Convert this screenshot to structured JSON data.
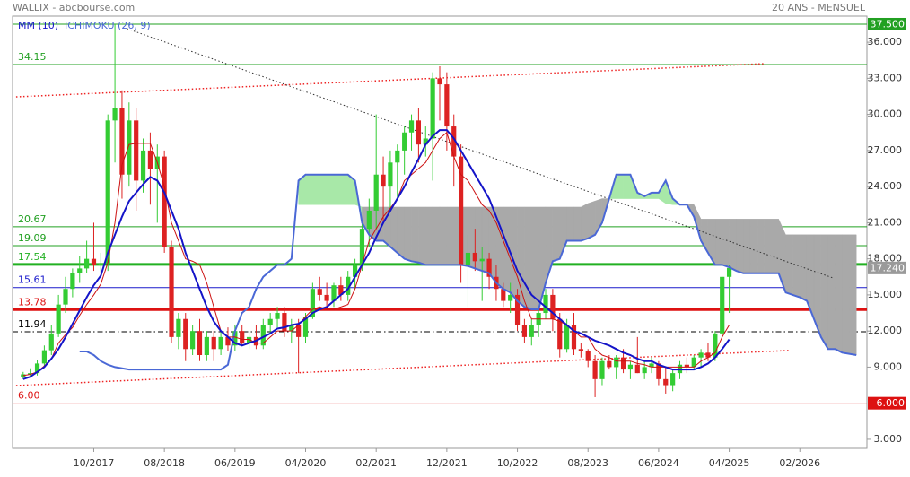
{
  "chart_data": {
    "type": "candlestick",
    "title": "WALLIX - abcbourse.com",
    "period": "20 ANS - MENSUEL",
    "categories": [
      null,
      null,
      null,
      null,
      null,
      null,
      null,
      null,
      null,
      null,
      null,
      "10/2017",
      null,
      null,
      null,
      null,
      null,
      null,
      null,
      null,
      null,
      "08/2018",
      null,
      null,
      null,
      null,
      null,
      null,
      null,
      null,
      null,
      "06/2019",
      null,
      null,
      null,
      null,
      null,
      null,
      null,
      null,
      null,
      "04/2020",
      null,
      null,
      null,
      null,
      null,
      null,
      null,
      null,
      null,
      "02/2021",
      null,
      null,
      null,
      null,
      null,
      null,
      null,
      null,
      null,
      "12/2021",
      null,
      null,
      null,
      null,
      null,
      null,
      null,
      null,
      null,
      "10/2022",
      null,
      null,
      null,
      null,
      null,
      null,
      null,
      null,
      null,
      "08/2023",
      null,
      null,
      null,
      null,
      null,
      null,
      null,
      null,
      null,
      "06/2024",
      null,
      null,
      null,
      null,
      null,
      null,
      null,
      null,
      null,
      "04/2025",
      null,
      null,
      null,
      null,
      null,
      null,
      null,
      null,
      null,
      "02/2026",
      null,
      null,
      null,
      null,
      null,
      null,
      null,
      null,
      null
    ],
    "ylim": [
      2.25,
      38.17
    ],
    "yticks": [
      {
        "value": 36,
        "label": "36.000"
      },
      {
        "value": 33,
        "label": "33.000"
      },
      {
        "value": 30,
        "label": "30.000"
      },
      {
        "value": 27,
        "label": "27.000"
      },
      {
        "value": 24,
        "label": "24.000"
      },
      {
        "value": 21,
        "label": "21.000"
      },
      {
        "value": 18,
        "label": "18.000"
      },
      {
        "value": 15,
        "label": "15.000"
      },
      {
        "value": 12,
        "label": "12.000"
      },
      {
        "value": 9,
        "label": "9.000"
      },
      {
        "value": 3,
        "label": "3.000"
      }
    ],
    "up_color": "#33cc33",
    "down_color": "#dd2222",
    "candles": {
      "open": [
        null,
        8.2,
        8.4,
        8.5,
        9.3,
        10.4,
        11.8,
        14.2,
        15.5,
        16.8,
        17.2,
        18.0,
        17.5,
        17.6,
        29.5,
        30.5,
        25.0,
        29.5,
        24.5,
        27.0,
        25.5,
        26.5,
        19.0,
        11.5,
        13.0,
        10.5,
        12.0,
        10.0,
        11.5,
        10.5,
        11.5,
        10.8,
        12.0,
        11.0,
        11.5,
        10.8,
        12.5,
        13.0,
        13.5,
        12.0,
        12.5,
        11.5,
        13.2,
        15.5,
        15.0,
        14.5,
        15.8,
        15.0,
        16.5,
        17.5,
        20.5,
        22.0,
        25.0,
        24.0,
        26.0,
        27.0,
        28.5,
        29.5,
        27.5,
        28.0,
        33.0,
        32.5,
        29.0,
        26.5,
        17.5,
        18.5,
        17.8,
        18.0,
        16.5,
        15.5,
        14.5,
        15.0,
        12.5,
        11.5,
        12.5,
        13.5,
        15.0,
        13.0,
        10.5,
        12.5,
        10.5,
        10.3,
        9.5,
        8.0,
        9.5,
        9.0,
        9.8,
        8.8,
        9.2,
        8.5,
        9.0,
        9.3,
        8.0,
        7.5,
        8.5,
        9.2,
        9.0,
        9.8,
        10.2,
        9.8,
        11.8,
        16.5,
        null,
        null,
        null,
        null,
        null,
        null,
        null,
        null,
        null,
        null,
        null,
        null,
        null,
        null,
        null,
        null,
        null,
        null,
        null
      ],
      "high": [
        null,
        8.6,
        8.9,
        9.6,
        10.8,
        12.5,
        15.0,
        16.5,
        17.2,
        18.2,
        19.5,
        21.0,
        18.5,
        30.0,
        37.5,
        32.0,
        31.0,
        30.5,
        28.0,
        28.5,
        27.5,
        27.0,
        19.5,
        13.5,
        13.5,
        12.5,
        13.0,
        12.0,
        12.0,
        12.0,
        12.3,
        12.5,
        12.5,
        12.0,
        12.5,
        13.0,
        13.5,
        14.0,
        14.0,
        13.0,
        13.0,
        13.5,
        16.0,
        16.5,
        16.0,
        16.0,
        16.5,
        17.0,
        18.0,
        21.0,
        23.0,
        30.0,
        26.5,
        27.0,
        27.5,
        29.0,
        30.0,
        30.5,
        29.0,
        33.5,
        34.0,
        33.5,
        30.0,
        27.5,
        20.0,
        20.5,
        19.0,
        18.5,
        17.5,
        16.0,
        16.0,
        15.5,
        13.0,
        13.0,
        14.0,
        15.5,
        15.5,
        13.5,
        13.0,
        13.5,
        11.0,
        10.5,
        10.0,
        9.8,
        10.0,
        10.0,
        10.5,
        9.5,
        11.5,
        9.5,
        9.8,
        9.5,
        9.0,
        8.8,
        9.5,
        9.8,
        10.0,
        10.5,
        11.0,
        12.0,
        16.5,
        17.5,
        null,
        null,
        null,
        null,
        null,
        null,
        null,
        null,
        null,
        null,
        null,
        null,
        null,
        null,
        null,
        null,
        null,
        null,
        null
      ],
      "low": [
        null,
        8.0,
        8.2,
        8.3,
        9.0,
        10.0,
        11.5,
        13.5,
        14.8,
        16.0,
        16.8,
        17.0,
        16.8,
        17.0,
        26.0,
        23.0,
        24.0,
        22.0,
        23.5,
        22.5,
        21.0,
        18.5,
        11.0,
        10.5,
        9.5,
        10.0,
        9.5,
        9.5,
        9.5,
        10.0,
        10.3,
        10.3,
        10.8,
        10.5,
        10.5,
        10.5,
        11.8,
        12.3,
        11.5,
        11.0,
        8.5,
        11.0,
        13.0,
        14.5,
        14.0,
        14.0,
        14.5,
        14.5,
        15.5,
        17.0,
        19.0,
        20.5,
        21.0,
        22.0,
        23.0,
        25.0,
        27.0,
        26.0,
        26.5,
        24.5,
        29.5,
        27.0,
        24.0,
        16.0,
        14.0,
        17.0,
        14.5,
        15.5,
        14.5,
        14.0,
        13.5,
        12.0,
        11.0,
        10.8,
        11.5,
        13.0,
        12.0,
        9.8,
        10.2,
        10.0,
        9.8,
        9.0,
        6.5,
        7.5,
        8.8,
        8.0,
        8.5,
        8.0,
        8.5,
        8.0,
        8.5,
        7.5,
        6.8,
        7.0,
        8.0,
        8.5,
        8.8,
        9.0,
        9.5,
        9.5,
        11.5,
        13.5,
        null,
        null,
        null,
        null,
        null,
        null,
        null,
        null,
        null,
        null,
        null,
        null,
        null,
        null,
        null,
        null,
        null,
        null,
        null
      ],
      "close": [
        null,
        8.4,
        8.5,
        9.3,
        10.4,
        11.8,
        14.2,
        15.5,
        16.8,
        17.2,
        18.0,
        17.5,
        17.6,
        29.5,
        30.5,
        25.0,
        29.5,
        24.5,
        27.0,
        25.5,
        26.5,
        19.0,
        11.5,
        13.0,
        10.5,
        12.0,
        10.0,
        11.5,
        10.5,
        11.5,
        10.8,
        12.0,
        11.0,
        11.5,
        10.8,
        12.5,
        13.0,
        13.5,
        12.0,
        12.5,
        11.5,
        13.2,
        15.5,
        15.0,
        14.5,
        15.8,
        15.0,
        16.5,
        17.5,
        20.5,
        22.0,
        25.0,
        24.0,
        26.0,
        27.0,
        28.5,
        29.5,
        27.5,
        28.0,
        33.0,
        32.5,
        29.0,
        26.5,
        17.5,
        18.5,
        17.8,
        18.0,
        16.5,
        15.5,
        14.5,
        15.0,
        12.5,
        11.5,
        12.5,
        13.5,
        15.0,
        13.0,
        10.5,
        12.5,
        10.5,
        10.3,
        9.5,
        8.0,
        9.5,
        9.0,
        9.8,
        8.8,
        9.2,
        8.5,
        9.0,
        9.3,
        8.0,
        7.5,
        8.5,
        9.2,
        9.0,
        9.8,
        10.2,
        9.8,
        11.8,
        16.5,
        17.24,
        null,
        null,
        null,
        null,
        null,
        null,
        null,
        null,
        null,
        null,
        null,
        null,
        null,
        null,
        null,
        null,
        null,
        null,
        null
      ]
    },
    "series": [
      {
        "name": "MM (10)",
        "color": "#1414c8",
        "values": [
          null,
          8.0,
          8.2,
          8.6,
          9.0,
          9.7,
          10.5,
          11.5,
          12.6,
          13.7,
          14.8,
          15.8,
          16.6,
          18.5,
          20.0,
          21.5,
          22.8,
          23.5,
          24.2,
          24.8,
          24.5,
          23.5,
          22.0,
          20.5,
          18.5,
          17.0,
          15.5,
          14.0,
          12.8,
          12.0,
          11.5,
          11.0,
          10.8,
          11.0,
          11.2,
          11.5,
          11.8,
          12.2,
          12.3,
          12.5,
          12.6,
          13.0,
          13.5,
          13.8,
          14.0,
          14.5,
          15.0,
          15.5,
          16.5,
          17.5,
          18.5,
          19.8,
          21.0,
          22.0,
          23.0,
          24.0,
          25.2,
          26.3,
          27.5,
          28.2,
          28.7,
          28.7,
          28.0,
          27.0,
          26.0,
          25.0,
          24.0,
          23.0,
          21.5,
          20.0,
          18.5,
          17.0,
          16.0,
          15.0,
          14.5,
          14.0,
          13.5,
          13.0,
          12.5,
          12.0,
          11.8,
          11.5,
          11.2,
          11.0,
          10.8,
          10.5,
          10.2,
          10.0,
          9.7,
          9.5,
          9.5,
          9.2,
          9.0,
          8.8,
          8.8,
          8.8,
          8.8,
          9.0,
          9.3,
          9.8,
          10.5,
          11.3,
          null,
          null,
          null,
          null,
          null,
          null,
          null,
          null,
          null,
          null,
          null,
          null,
          null,
          null,
          null,
          null,
          null,
          null,
          null
        ]
      },
      {
        "name": "ICHIMOKU (26, 9)",
        "color": "#4a68d6",
        "line_color": "#cc1111",
        "cloud_up_color": "#a8e8a8",
        "cloud_down_color": "#a9a9a9",
        "line": [
          null,
          8.3,
          8.4,
          8.6,
          9.1,
          9.7,
          11.0,
          11.7,
          12.3,
          13.3,
          14.2,
          15.0,
          15.9,
          17.7,
          21.0,
          25.8,
          27.5,
          27.6,
          27.6,
          27.6,
          26.0,
          24.0,
          21.0,
          19.5,
          18.0,
          17.8,
          17.5,
          16.0,
          14.0,
          12.0,
          11.5,
          11.5,
          11.3,
          11.3,
          11.0,
          11.0,
          11.5,
          12.0,
          12.0,
          12.0,
          12.5,
          13.2,
          13.8,
          14.0,
          13.8,
          13.8,
          14.0,
          14.2,
          15.5,
          17.5,
          19.5,
          20.5,
          21.5,
          22.2,
          23.0,
          24.5,
          25.0,
          25.5,
          26.0,
          27.0,
          28.0,
          28.5,
          26.5,
          25.0,
          24.5,
          23.5,
          22.5,
          22.0,
          21.0,
          19.5,
          18.0,
          16.5,
          14.5,
          13.0,
          13.0,
          13.0,
          13.0,
          12.8,
          12.5,
          12.0,
          11.5,
          11.5,
          10.5,
          10.0,
          9.8,
          9.5,
          9.5,
          9.5,
          9.3,
          9.2,
          9.0,
          9.0,
          9.0,
          9.0,
          9.0,
          9.0,
          9.0,
          9.5,
          9.8,
          10.2,
          11.5,
          12.5,
          null,
          null,
          null,
          null,
          null,
          null,
          null,
          null,
          null,
          null,
          null,
          null,
          null,
          null,
          null,
          null,
          null,
          null,
          null
        ],
        "span_a": [
          null,
          null,
          null,
          null,
          null,
          null,
          null,
          null,
          null,
          10.3,
          10.3,
          10.0,
          9.5,
          9.2,
          9.0,
          8.9,
          8.8,
          8.8,
          8.8,
          8.8,
          8.8,
          8.8,
          8.8,
          8.8,
          8.8,
          8.8,
          8.8,
          8.8,
          8.8,
          8.8,
          9.2,
          12.0,
          13.5,
          14.0,
          15.5,
          16.5,
          17.0,
          17.5,
          17.5,
          18.0,
          24.5,
          25.0,
          25.0,
          25.0,
          25.0,
          25.0,
          25.0,
          25.0,
          24.5,
          21.0,
          20.0,
          19.5,
          19.5,
          19.0,
          18.5,
          18.0,
          17.8,
          17.7,
          17.5,
          17.5,
          17.5,
          17.5,
          17.5,
          17.5,
          17.4,
          17.2,
          17.0,
          16.8,
          16.0,
          15.5,
          15.2,
          14.5,
          14.0,
          13.8,
          13.8,
          16.0,
          17.8,
          18.0,
          19.5,
          19.5,
          19.5,
          19.7,
          20.0,
          21.0,
          23.0,
          25.0,
          25.0,
          25.0,
          23.5,
          23.2,
          23.5,
          23.5,
          24.5,
          23.0,
          22.5,
          22.5,
          21.5,
          19.5,
          18.5,
          17.5,
          17.5,
          17.3,
          17.0,
          16.8,
          16.8,
          16.8,
          16.8,
          16.8,
          16.8,
          15.2,
          15.0,
          14.8,
          14.5,
          13.0,
          11.5,
          10.5,
          10.5,
          10.2,
          10.1,
          10.0,
          null
        ],
        "span_b": [
          null,
          null,
          null,
          null,
          null,
          null,
          null,
          null,
          null,
          null,
          null,
          null,
          null,
          null,
          null,
          null,
          null,
          null,
          null,
          null,
          null,
          null,
          null,
          null,
          null,
          null,
          null,
          null,
          null,
          null,
          null,
          null,
          null,
          null,
          null,
          null,
          null,
          null,
          null,
          null,
          22.5,
          22.5,
          22.5,
          22.5,
          22.5,
          22.5,
          22.5,
          22.5,
          22.5,
          22.3,
          22.3,
          22.3,
          22.3,
          22.3,
          22.3,
          22.3,
          22.3,
          22.3,
          22.3,
          22.3,
          22.3,
          22.3,
          22.3,
          22.3,
          22.3,
          22.3,
          22.3,
          22.3,
          22.3,
          22.3,
          22.3,
          22.3,
          22.3,
          22.3,
          22.3,
          22.3,
          22.3,
          22.3,
          22.3,
          22.3,
          22.3,
          22.6,
          22.8,
          23.0,
          23.0,
          23.0,
          23.0,
          23.0,
          23.0,
          23.0,
          23.0,
          23.0,
          22.6,
          22.5,
          22.5,
          22.5,
          22.5,
          21.3,
          21.3,
          21.3,
          21.3,
          21.3,
          21.3,
          21.3,
          21.3,
          21.3,
          21.3,
          21.3,
          21.3,
          20.0,
          20.0,
          20.0,
          20.0,
          20.0,
          20.0,
          20.0,
          20.0,
          20.0,
          20.0,
          20.0,
          null
        ]
      }
    ],
    "levels": [
      {
        "value": 37.5,
        "color": "#22a022",
        "tag": "37.500"
      },
      {
        "value": 34.15,
        "label": "34.15",
        "color": "#22a022"
      },
      {
        "value": 20.67,
        "label": "20.67",
        "color": "#22a022"
      },
      {
        "value": 19.09,
        "label": "19.09",
        "color": "#22a022"
      },
      {
        "value": 17.54,
        "label": "17.54",
        "color": "#22b022",
        "thick": true
      },
      {
        "value": 15.61,
        "label": "15.61",
        "color": "#1a1acc"
      },
      {
        "value": 13.78,
        "label": "13.78",
        "color": "#dd1111",
        "thick": true
      },
      {
        "value": 11.94,
        "label": "11.94",
        "color": "#000000",
        "style": "dashdot"
      },
      {
        "value": 6,
        "label": "6.00",
        "color": "#dd1111",
        "tag": "6.000"
      }
    ],
    "last_price": {
      "value": 17.24,
      "tag": "17.240",
      "color": "#9a9a9a"
    },
    "trendlines": [
      {
        "color": "#ee2222",
        "style": "dotted",
        "x": [
          0,
          106
        ],
        "y": [
          31.46,
          34.22
        ]
      },
      {
        "color": "#ee2222",
        "style": "dotted",
        "x": [
          0,
          109.4
        ],
        "y": [
          7.47,
          10.38
        ]
      },
      {
        "color": "#333333",
        "style": "dotted",
        "x": [
          15.7,
          115.7
        ],
        "y": [
          37.13,
          16.41
        ]
      }
    ]
  }
}
